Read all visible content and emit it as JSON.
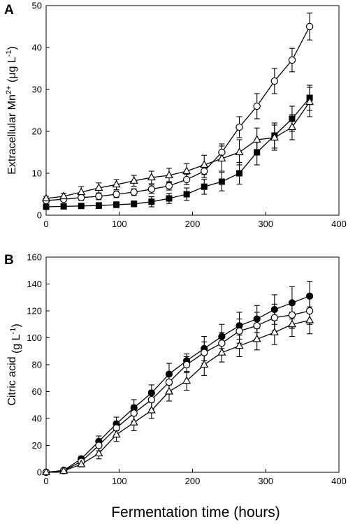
{
  "figure": {
    "xlabel": "Fermentation time (hours)"
  },
  "chart_data": [
    {
      "type": "line",
      "panel": "A",
      "ylabel": "Extracellular Mn",
      "ylabel_sup": "2+",
      "ylabel_unit": " (μg L",
      "ylabel_unit_sup": "-1",
      "ylabel_close": ")",
      "xlim": [
        0,
        400
      ],
      "ylim": [
        0,
        50
      ],
      "xticks": [
        "0",
        "100",
        "200",
        "300",
        "400"
      ],
      "yticks": [
        "0",
        "10",
        "20",
        "30",
        "40",
        "50"
      ],
      "x": [
        0,
        24,
        48,
        72,
        96,
        120,
        144,
        168,
        192,
        216,
        240,
        264,
        288,
        312,
        336,
        360
      ],
      "series": [
        {
          "marker": "open-circle",
          "values": [
            3.5,
            3.8,
            4.2,
            4.5,
            5.0,
            5.5,
            6.2,
            7.0,
            8.5,
            10.5,
            15.0,
            21.0,
            26.0,
            32.0,
            37.0,
            45.0
          ],
          "errors": [
            0.5,
            0.5,
            0.7,
            0.8,
            0.8,
            0.8,
            1.0,
            1.0,
            1.2,
            1.5,
            2.0,
            2.5,
            3.0,
            3.0,
            2.8,
            3.2
          ]
        },
        {
          "marker": "filled-square",
          "values": [
            2.0,
            2.1,
            2.2,
            2.3,
            2.5,
            2.7,
            3.2,
            4.0,
            5.0,
            6.8,
            8.0,
            10.0,
            15.0,
            19.0,
            23.0,
            28.0
          ],
          "errors": [
            0.5,
            0.6,
            0.6,
            0.7,
            0.7,
            0.7,
            1.2,
            1.2,
            1.5,
            1.8,
            2.2,
            2.6,
            3.0,
            3.0,
            3.0,
            3.0
          ]
        },
        {
          "marker": "open-triangle",
          "values": [
            4.0,
            4.5,
            5.5,
            6.5,
            7.3,
            8.2,
            9.0,
            9.5,
            10.5,
            12.0,
            13.5,
            15.0,
            18.0,
            18.5,
            21.0,
            27.0
          ],
          "errors": [
            0.5,
            0.7,
            1.3,
            1.2,
            1.2,
            1.3,
            1.5,
            1.7,
            1.8,
            2.3,
            3.0,
            3.0,
            2.8,
            3.0,
            3.0,
            3.5
          ]
        }
      ]
    },
    {
      "type": "line",
      "panel": "B",
      "ylabel": "Citric acid",
      "ylabel_sup": "",
      "ylabel_unit": " (g L",
      "ylabel_unit_sup": "-1",
      "ylabel_close": ")",
      "xlim": [
        0,
        400
      ],
      "ylim": [
        0,
        160
      ],
      "xticks": [
        "0",
        "100",
        "200",
        "300",
        "400"
      ],
      "yticks": [
        "0",
        "20",
        "40",
        "60",
        "80",
        "100",
        "120",
        "140",
        "160"
      ],
      "x": [
        0,
        24,
        48,
        72,
        96,
        120,
        144,
        168,
        192,
        216,
        240,
        264,
        288,
        312,
        336,
        360
      ],
      "series": [
        {
          "marker": "filled-circle",
          "values": [
            0,
            1.5,
            10,
            23,
            36,
            48,
            59,
            73,
            83,
            92,
            101,
            109,
            114,
            121,
            126,
            131
          ],
          "errors": [
            0,
            0.5,
            2,
            4,
            5,
            6,
            6,
            8,
            5,
            9,
            9,
            10,
            10,
            11,
            12,
            11
          ]
        },
        {
          "marker": "open-circle",
          "values": [
            0,
            1.2,
            8,
            20,
            33,
            44,
            54,
            67,
            80,
            89,
            96,
            105,
            109,
            115,
            117,
            120
          ],
          "errors": [
            0,
            0.5,
            2,
            4,
            5,
            6,
            7,
            7,
            6,
            8,
            8,
            9,
            10,
            10,
            10,
            10
          ]
        },
        {
          "marker": "open-triangle",
          "values": [
            0,
            1.0,
            6,
            14,
            28,
            37,
            46,
            60,
            68,
            80,
            89,
            94,
            99,
            104,
            110,
            113
          ],
          "errors": [
            0,
            0.5,
            2,
            4,
            5,
            6,
            6,
            7,
            7,
            8,
            7,
            8,
            8,
            9,
            9,
            10
          ]
        }
      ]
    }
  ]
}
